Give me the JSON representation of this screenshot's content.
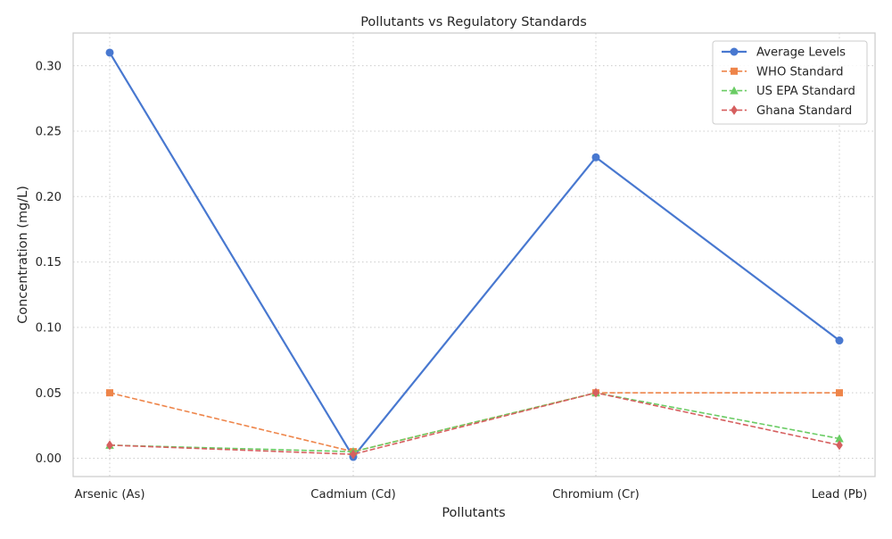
{
  "chart_data": {
    "type": "line",
    "title": "Pollutants vs Regulatory Standards",
    "xlabel": "Pollutants",
    "ylabel": "Concentration (mg/L)",
    "categories": [
      "Arsenic (As)",
      "Cadmium (Cd)",
      "Chromium (Cr)",
      "Lead (Pb)"
    ],
    "ylim": [
      -0.014,
      0.325
    ],
    "yticks": [
      0.0,
      0.05,
      0.1,
      0.15,
      0.2,
      0.25,
      0.3
    ],
    "ytick_labels": [
      "0.00",
      "0.05",
      "0.10",
      "0.15",
      "0.20",
      "0.25",
      "0.30"
    ],
    "grid": true,
    "legend_position": "top-right",
    "series": [
      {
        "name": "Average Levels",
        "values": [
          0.31,
          0.001,
          0.23,
          0.09
        ],
        "color": "#4878d0",
        "marker": "circle",
        "linestyle": "solid"
      },
      {
        "name": "WHO Standard",
        "values": [
          0.05,
          0.005,
          0.05,
          0.05
        ],
        "color": "#ee854a",
        "marker": "square",
        "linestyle": "dashed"
      },
      {
        "name": "US EPA Standard",
        "values": [
          0.01,
          0.005,
          0.05,
          0.015
        ],
        "color": "#6acc64",
        "marker": "triangle",
        "linestyle": "dashed"
      },
      {
        "name": "Ghana Standard",
        "values": [
          0.01,
          0.003,
          0.05,
          0.01
        ],
        "color": "#d65f5f",
        "marker": "diamond",
        "linestyle": "dashed"
      }
    ]
  }
}
